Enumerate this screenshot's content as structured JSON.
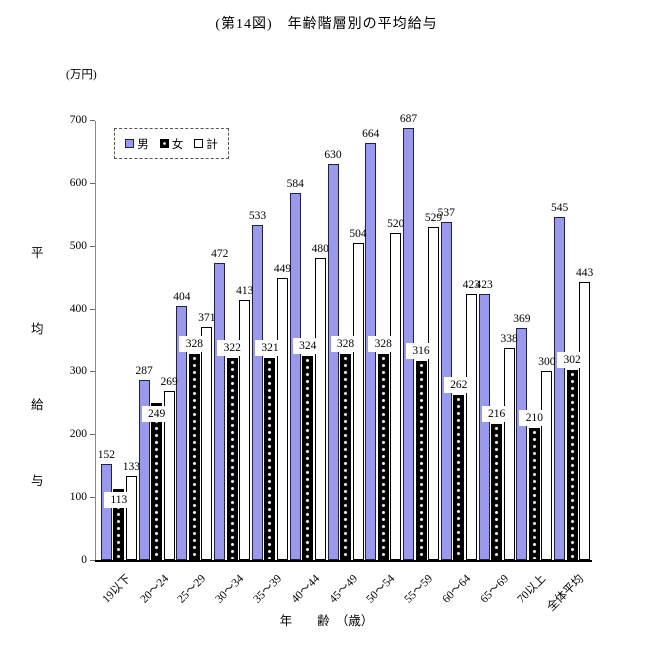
{
  "chart_data": {
    "type": "bar",
    "title": "(第14図)　年齢階層別の平均給与",
    "y_unit_label": "(万円)",
    "ylabel": "平均給与",
    "xlabel": "年　　齢　（歳）",
    "ylim": [
      0,
      700
    ],
    "yticks": [
      0,
      100,
      200,
      300,
      400,
      500,
      600,
      700
    ],
    "grid": false,
    "legend_position": "top-left-inside-dashed-box",
    "categories": [
      "19以下",
      "20〜24",
      "25〜29",
      "30〜34",
      "35〜39",
      "40〜44",
      "45〜49",
      "50〜54",
      "55〜59",
      "60〜64",
      "65〜69",
      "70以上",
      "全体平均"
    ],
    "series": [
      {
        "key": "male",
        "name": "男",
        "color": "#9999EE",
        "values": [
          152,
          287,
          404,
          472,
          533,
          584,
          630,
          664,
          687,
          537,
          423,
          369,
          545
        ]
      },
      {
        "key": "female",
        "name": "女",
        "color": "#000000",
        "pattern": "white-dots",
        "values": [
          113,
          249,
          328,
          322,
          321,
          324,
          328,
          328,
          316,
          262,
          216,
          210,
          302
        ]
      },
      {
        "key": "total",
        "name": "計",
        "color": "#FFFFFF",
        "values": [
          133,
          269,
          371,
          413,
          449,
          480,
          504,
          520,
          529,
          423,
          338,
          300,
          443
        ]
      }
    ]
  }
}
